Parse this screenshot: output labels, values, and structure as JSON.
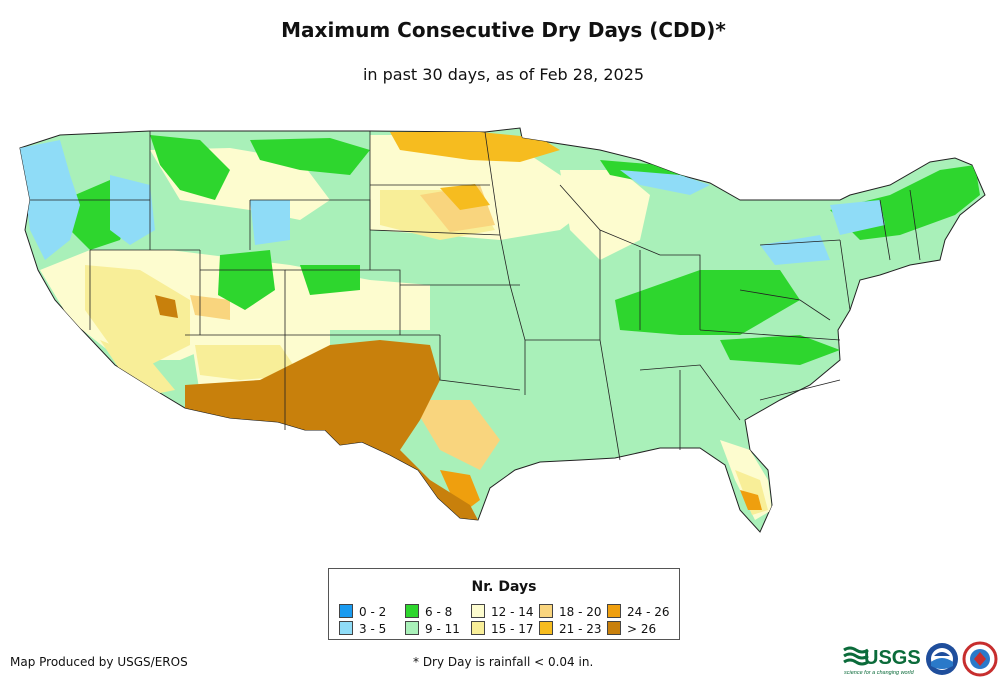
{
  "header": {
    "title": "Maximum Consecutive Dry Days (CDD)*",
    "subtitle": "in past 30 days, as of Feb 28, 2025"
  },
  "legend": {
    "title": "Nr. Days",
    "items": [
      {
        "label": "0 - 2",
        "color": "#1a9bf0"
      },
      {
        "label": "3 - 5",
        "color": "#8fdcf7"
      },
      {
        "label": "6 - 8",
        "color": "#2ed62e"
      },
      {
        "label": "9 - 11",
        "color": "#a9f0b9"
      },
      {
        "label": "12 - 14",
        "color": "#fdfccf"
      },
      {
        "label": "15 - 17",
        "color": "#f8ee98"
      },
      {
        "label": "18 - 20",
        "color": "#f9d57e"
      },
      {
        "label": "21 - 23",
        "color": "#f6bc1f"
      },
      {
        "label": "24 - 26",
        "color": "#ef9f0e"
      },
      {
        "label": "> 26",
        "color": "#c8800c"
      }
    ]
  },
  "footer": {
    "credit": "Map Produced by USGS/EROS",
    "footnote": "* Dry Day is rainfall < 0.04 in.",
    "logo_text": "USGS",
    "logo_tagline": "science for a changing world",
    "logo_icons": [
      "usgs-logo",
      "noaa-logo",
      "nws-logo"
    ]
  }
}
